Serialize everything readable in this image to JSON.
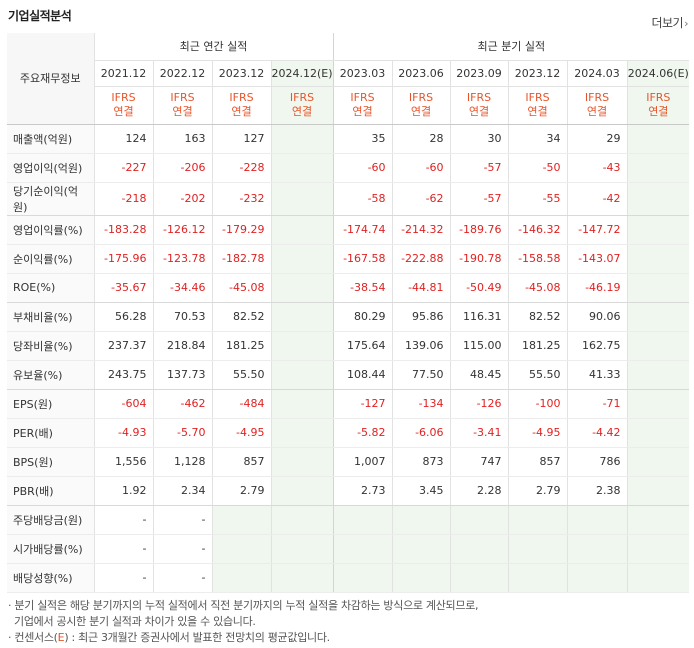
{
  "title": "기업실적분석",
  "more": {
    "label": "더보기",
    "icon": "chevron-right-icon"
  },
  "header": {
    "row_label": "주요재무정보",
    "annual_group": "최근 연간 실적",
    "quarter_group": "최근 분기 실적",
    "annual_periods": [
      "2021.12",
      "2022.12",
      "2023.12",
      "2024.12(E)"
    ],
    "quarter_periods": [
      "2023.03",
      "2023.06",
      "2023.09",
      "2023.12",
      "2024.03",
      "2024.06(E)"
    ],
    "ifrs_top": "IFRS",
    "ifrs_bottom": "연결"
  },
  "rows": [
    {
      "label": "매출액(억원)",
      "annual": [
        "124",
        "163",
        "127",
        ""
      ],
      "quarter": [
        "35",
        "28",
        "30",
        "34",
        "29",
        ""
      ]
    },
    {
      "label": "영업이익(억원)",
      "annual": [
        "-227",
        "-206",
        "-228",
        ""
      ],
      "quarter": [
        "-60",
        "-60",
        "-57",
        "-50",
        "-43",
        ""
      ]
    },
    {
      "label": "당기순이익(억원)",
      "annual": [
        "-218",
        "-202",
        "-232",
        ""
      ],
      "quarter": [
        "-58",
        "-62",
        "-57",
        "-55",
        "-42",
        ""
      ]
    },
    {
      "label": "영업이익률(%)",
      "annual": [
        "-183.28",
        "-126.12",
        "-179.29",
        ""
      ],
      "quarter": [
        "-174.74",
        "-214.32",
        "-189.76",
        "-146.32",
        "-147.72",
        ""
      ]
    },
    {
      "label": "순이익률(%)",
      "annual": [
        "-175.96",
        "-123.78",
        "-182.78",
        ""
      ],
      "quarter": [
        "-167.58",
        "-222.88",
        "-190.78",
        "-158.58",
        "-143.07",
        ""
      ]
    },
    {
      "label": "ROE(%)",
      "annual": [
        "-35.67",
        "-34.46",
        "-45.08",
        ""
      ],
      "quarter": [
        "-38.54",
        "-44.81",
        "-50.49",
        "-45.08",
        "-46.19",
        ""
      ]
    },
    {
      "label": "부채비율(%)",
      "annual": [
        "56.28",
        "70.53",
        "82.52",
        ""
      ],
      "quarter": [
        "80.29",
        "95.86",
        "116.31",
        "82.52",
        "90.06",
        ""
      ]
    },
    {
      "label": "당좌비율(%)",
      "annual": [
        "237.37",
        "218.84",
        "181.25",
        ""
      ],
      "quarter": [
        "175.64",
        "139.06",
        "115.00",
        "181.25",
        "162.75",
        ""
      ]
    },
    {
      "label": "유보율(%)",
      "annual": [
        "243.75",
        "137.73",
        "55.50",
        ""
      ],
      "quarter": [
        "108.44",
        "77.50",
        "48.45",
        "55.50",
        "41.33",
        ""
      ]
    },
    {
      "label": "EPS(원)",
      "annual": [
        "-604",
        "-462",
        "-484",
        ""
      ],
      "quarter": [
        "-127",
        "-134",
        "-126",
        "-100",
        "-71",
        ""
      ]
    },
    {
      "label": "PER(배)",
      "annual": [
        "-4.93",
        "-5.70",
        "-4.95",
        ""
      ],
      "quarter": [
        "-5.82",
        "-6.06",
        "-3.41",
        "-4.95",
        "-4.42",
        ""
      ]
    },
    {
      "label": "BPS(원)",
      "annual": [
        "1,556",
        "1,128",
        "857",
        ""
      ],
      "quarter": [
        "1,007",
        "873",
        "747",
        "857",
        "786",
        ""
      ]
    },
    {
      "label": "PBR(배)",
      "annual": [
        "1.92",
        "2.34",
        "2.79",
        ""
      ],
      "quarter": [
        "2.73",
        "3.45",
        "2.28",
        "2.79",
        "2.38",
        ""
      ]
    },
    {
      "label": "주당배당금(원)",
      "annual": [
        "-",
        "-",
        "",
        ""
      ],
      "quarter": [
        "",
        "",
        "",
        "",
        "",
        ""
      ]
    },
    {
      "label": "시가배당률(%)",
      "annual": [
        "-",
        "-",
        "",
        ""
      ],
      "quarter": [
        "",
        "",
        "",
        "",
        "",
        ""
      ]
    },
    {
      "label": "배당성향(%)",
      "annual": [
        "-",
        "-",
        "",
        ""
      ],
      "quarter": [
        "",
        "",
        "",
        "",
        "",
        ""
      ]
    }
  ],
  "notes": {
    "line1": "· 분기 실적은 해당 분기까지의 누적 실적에서 직전 분기까지의 누적 실적을 차감하는 방식으로 계산되므로,",
    "line2": "  기업에서 공시한 분기 실적과 차이가 있을 수 있습니다.",
    "line3_prefix": "· 컨센서스(",
    "line3_e": "E",
    "line3_suffix": ") : 최근 3개월간 증권사에서 발표한 전망치의 평균값입니다."
  },
  "colors": {
    "negative": "#e02222",
    "ifrs": "#e8542a",
    "estimate_bg": "#f0f7ee"
  }
}
